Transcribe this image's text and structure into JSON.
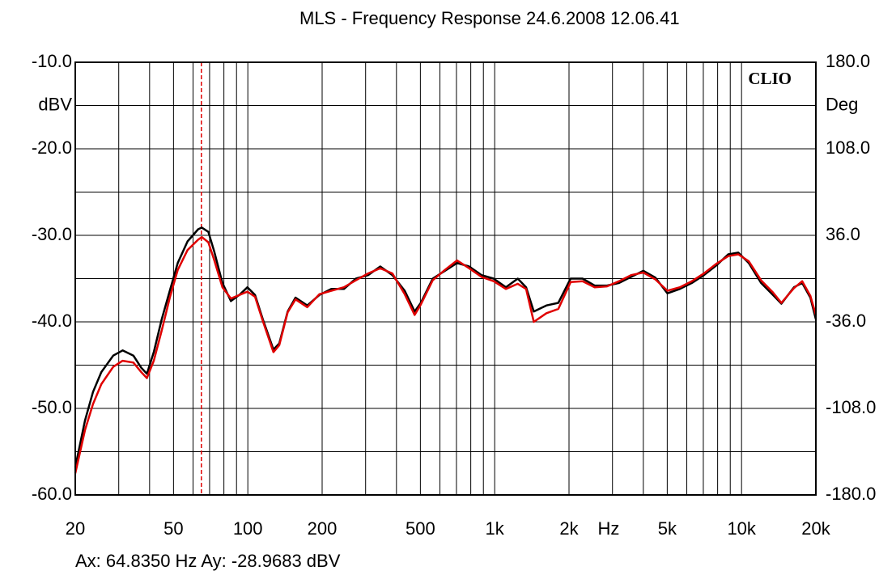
{
  "chart_data": {
    "type": "line",
    "title": "MLS - Frequency Response  24.6.2008 12.06.41",
    "logo": "CLIO",
    "xlabel": "Hz",
    "ylabel": "dBV",
    "y2label": "Deg",
    "xscale": "log",
    "xlim": [
      20,
      20000
    ],
    "xticks": [
      20,
      50,
      100,
      200,
      500,
      {
        "value": 1000,
        "label": "1k"
      },
      {
        "value": 2000,
        "label": "2k"
      },
      {
        "value": 5000,
        "label": "5k"
      },
      {
        "value": 10000,
        "label": "10k"
      },
      {
        "value": 20000,
        "label": "20k"
      }
    ],
    "xminorticks": [
      30,
      40,
      60,
      70,
      80,
      90,
      300,
      400,
      600,
      700,
      800,
      900,
      3000,
      4000,
      6000,
      7000,
      8000,
      9000
    ],
    "ylim": [
      -60,
      -10
    ],
    "yticks": [
      {
        "value": -10,
        "label": "-10.0"
      },
      {
        "value": -20,
        "label": "-20.0"
      },
      {
        "value": -30,
        "label": "-30.0"
      },
      {
        "value": -40,
        "label": "-40.0"
      },
      {
        "value": -50,
        "label": "-50.0"
      },
      {
        "value": -60,
        "label": "-60.0"
      }
    ],
    "yminorticks": [
      -15,
      -25,
      -35,
      -45,
      -55
    ],
    "y2lim": [
      -180,
      180
    ],
    "y2ticks": [
      {
        "value": 180,
        "label": "180.0"
      },
      {
        "value": 108,
        "label": "108.0"
      },
      {
        "value": 36,
        "label": "36.0"
      },
      {
        "value": -36,
        "label": "-36.0"
      },
      {
        "value": -108,
        "label": "-108.0"
      },
      {
        "value": -180,
        "label": "-180.0"
      }
    ],
    "grid": true,
    "cursor": {
      "x": 64.835,
      "color": "#e00000",
      "label": "Ax: 64.8350 Hz   Ay: -28.9683 dBV"
    },
    "x": [
      20,
      21.9,
      23.6,
      25.5,
      28.5,
      31.1,
      34.4,
      37,
      39,
      41.6,
      44.8,
      48.3,
      52,
      57,
      62.9,
      65.1,
      69.2,
      73,
      78.9,
      85.4,
      92.3,
      99.6,
      107,
      115,
      127,
      134,
      145,
      156,
      174,
      195,
      218,
      245,
      274,
      307,
      344,
      385,
      432,
      474,
      502,
      561,
      628,
      704,
      788,
      884,
      990,
      1110,
      1240,
      1340,
      1440,
      1620,
      1810,
      2030,
      2270,
      2540,
      2850,
      3190,
      3570,
      4000,
      4480,
      5010,
      5620,
      6290,
      7040,
      7890,
      8830,
      9700,
      10700,
      12000,
      13400,
      14500,
      16300,
      17600,
      19000,
      20000
    ],
    "series": [
      {
        "name": "Black",
        "color": "#000000",
        "values": [
          -56.8,
          -51.4,
          -48.1,
          -45.8,
          -43.9,
          -43.3,
          -43.9,
          -45.3,
          -46.0,
          -43.5,
          -39.7,
          -36.4,
          -33.2,
          -30.7,
          -29.3,
          -29.1,
          -29.6,
          -31.8,
          -35.5,
          -37.6,
          -36.9,
          -36.0,
          -36.9,
          -39.7,
          -43.2,
          -42.5,
          -38.8,
          -37.2,
          -38.1,
          -36.9,
          -36.2,
          -36.2,
          -35.0,
          -34.6,
          -33.6,
          -34.6,
          -36.4,
          -38.8,
          -37.8,
          -35.0,
          -34.1,
          -33.2,
          -33.6,
          -34.6,
          -35.0,
          -36.0,
          -35.0,
          -36.0,
          -38.8,
          -38.1,
          -37.8,
          -35.0,
          -35.0,
          -35.8,
          -35.8,
          -35.5,
          -34.8,
          -34.1,
          -34.9,
          -36.7,
          -36.2,
          -35.5,
          -34.6,
          -33.5,
          -32.2,
          -32.0,
          -33.2,
          -35.5,
          -36.9,
          -37.9,
          -36.0,
          -35.5,
          -37.2,
          -39.7
        ]
      },
      {
        "name": "Red",
        "color": "#e00000",
        "values": [
          -57.5,
          -52.5,
          -49.5,
          -47.2,
          -45.2,
          -44.5,
          -44.7,
          -45.8,
          -46.5,
          -44.5,
          -41.0,
          -37.2,
          -34.0,
          -31.7,
          -30.5,
          -30.2,
          -30.8,
          -32.8,
          -36.0,
          -37.3,
          -36.9,
          -36.5,
          -37.1,
          -39.9,
          -43.5,
          -42.7,
          -38.9,
          -37.4,
          -38.3,
          -36.8,
          -36.4,
          -36.0,
          -35.2,
          -34.4,
          -33.8,
          -34.4,
          -36.8,
          -39.2,
          -38.0,
          -35.2,
          -34.0,
          -32.9,
          -33.8,
          -34.8,
          -35.3,
          -36.2,
          -35.6,
          -36.2,
          -40.0,
          -39.0,
          -38.5,
          -35.4,
          -35.3,
          -36.0,
          -35.9,
          -35.3,
          -34.6,
          -34.3,
          -35.1,
          -36.4,
          -36.0,
          -35.3,
          -34.4,
          -33.3,
          -32.4,
          -32.2,
          -33.0,
          -35.2,
          -36.6,
          -37.8,
          -36.1,
          -35.3,
          -37.0,
          -39.2
        ]
      }
    ]
  }
}
